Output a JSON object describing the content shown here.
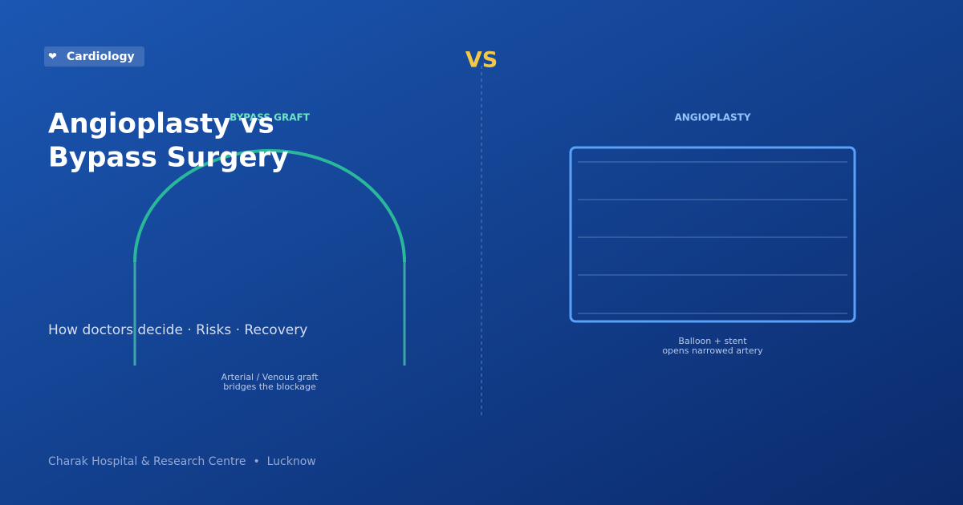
{
  "badge": {
    "icon": "❤",
    "label": "Cardiology"
  },
  "title": {
    "lines": [
      "Angioplasty vs",
      "Bypass Surgery"
    ]
  },
  "subtitle": "How doctors decide · Risks · Recovery",
  "vs": "VS",
  "bypass": {
    "label": "BYPASS GRAFT",
    "caption": [
      "Arterial / Venous graft",
      "bridges the blockage"
    ]
  },
  "angioplasty": {
    "label": "ANGIOPLASTY",
    "caption": [
      "Balloon + stent",
      "opens narrowed artery"
    ]
  },
  "footer": "Charak Hospital & Research Centre  •  Lucknow"
}
